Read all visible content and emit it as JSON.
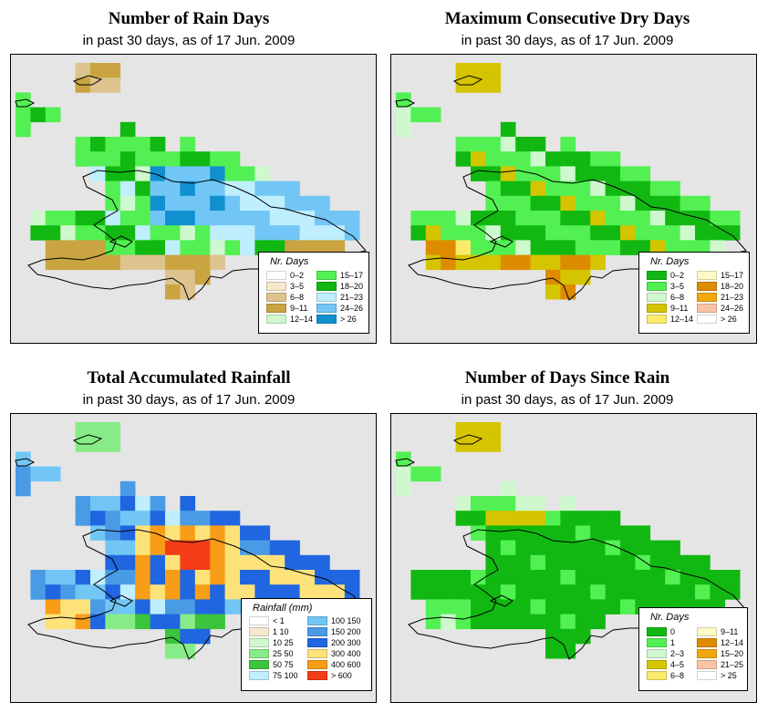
{
  "map_style": {
    "background": "#e5e5e5",
    "frame": "#000000",
    "coast": "#000000"
  },
  "panels": [
    {
      "title": "Number of Rain Days",
      "subtitle": "in past 30 days, as of  17 Jun. 2009",
      "legend": {
        "title": "Nr. Days",
        "items": [
          {
            "label": "0–2",
            "color": "#ffffff"
          },
          {
            "label": "3–5",
            "color": "#f5e8cd"
          },
          {
            "label": "6–8",
            "color": "#ddc38e"
          },
          {
            "label": "9–11",
            "color": "#c9a441"
          },
          {
            "label": "12–14",
            "color": "#cff8cf"
          },
          {
            "label": "15–17",
            "color": "#52f052"
          },
          {
            "label": "18–20",
            "color": "#11b811"
          },
          {
            "label": "21–23",
            "color": "#bfeefe"
          },
          {
            "label": "24–26",
            "color": "#72c6f5"
          },
          {
            "label": "> 26",
            "color": "#1190d0"
          }
        ]
      }
    },
    {
      "title": "Maximum Consecutive Dry Days",
      "subtitle": "in past 30 days, as of  17 Jun. 2009",
      "legend": {
        "title": "Nr. Days",
        "items": [
          {
            "label": "0–2",
            "color": "#11b811"
          },
          {
            "label": "3–5",
            "color": "#52f052"
          },
          {
            "label": "6–8",
            "color": "#cff8cf"
          },
          {
            "label": "9–11",
            "color": "#d5c400"
          },
          {
            "label": "12–14",
            "color": "#faec6a"
          },
          {
            "label": "15–17",
            "color": "#fffac8"
          },
          {
            "label": "18–20",
            "color": "#dd8c00"
          },
          {
            "label": "21–23",
            "color": "#f2a70e"
          },
          {
            "label": "24–26",
            "color": "#fac4a4"
          },
          {
            "label": "> 26",
            "color": "#ffffff"
          }
        ]
      }
    },
    {
      "title": "Total Accumulated Rainfall",
      "subtitle": "in past 30 days, as of  17 Jun. 2009",
      "legend": {
        "title": "Rainfall (mm)",
        "items": [
          {
            "label": "< 1",
            "color": "#ffffff"
          },
          {
            "label": "1    10",
            "color": "#f5e8cd"
          },
          {
            "label": "10    25",
            "color": "#cff8cf"
          },
          {
            "label": "25    50",
            "color": "#87ec87"
          },
          {
            "label": "50    75",
            "color": "#3cc43c"
          },
          {
            "label": "75   100",
            "color": "#bfeefe"
          },
          {
            "label": "100   150",
            "color": "#72c6f5"
          },
          {
            "label": "150   200",
            "color": "#4a9be6"
          },
          {
            "label": "200   300",
            "color": "#1f66e0"
          },
          {
            "label": "300   400",
            "color": "#fde27a"
          },
          {
            "label": "400   600",
            "color": "#f79d18"
          },
          {
            "label": "> 600",
            "color": "#f43c18"
          }
        ]
      }
    },
    {
      "title": "Number of Days Since Rain",
      "subtitle": "in past 30 days, as of  17 Jun. 2009",
      "legend": {
        "title": "Nr. Days",
        "items": [
          {
            "label": "0",
            "color": "#11b811"
          },
          {
            "label": "1",
            "color": "#52f052"
          },
          {
            "label": "2–3",
            "color": "#cff8cf"
          },
          {
            "label": "4–5",
            "color": "#d5c400"
          },
          {
            "label": "6–8",
            "color": "#faec6a"
          },
          {
            "label": "9–11",
            "color": "#fffac8"
          },
          {
            "label": "12–14",
            "color": "#dd8c00"
          },
          {
            "label": "15–20",
            "color": "#f2a70e"
          },
          {
            "label": "21–25",
            "color": "#fac4a4"
          },
          {
            "label": "> 25",
            "color": "#ffffff"
          }
        ]
      }
    }
  ]
}
